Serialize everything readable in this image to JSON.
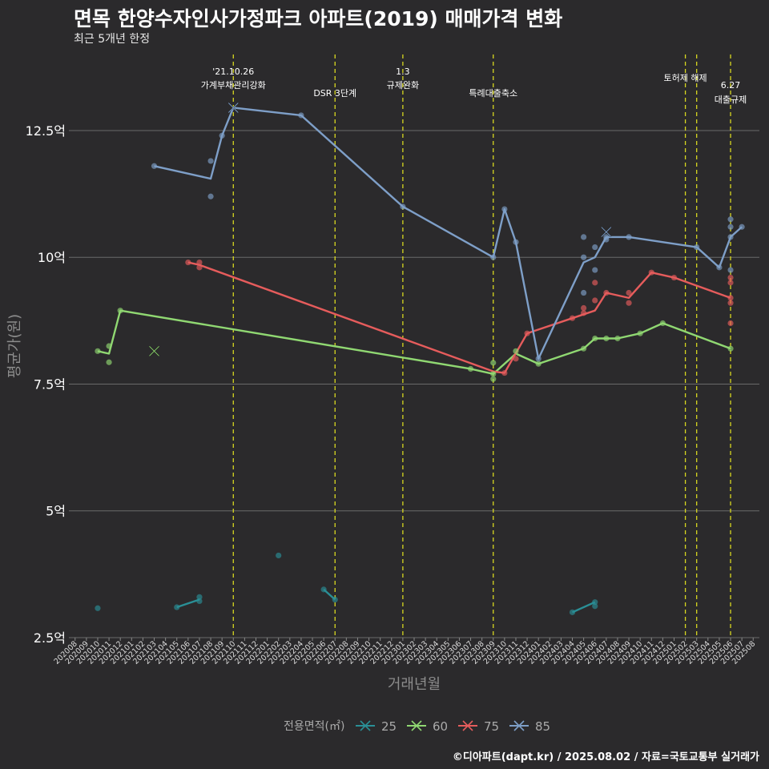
{
  "title": "면목 한양수자인사가정파크 아파트(2019) 매매가격 변화",
  "subtitle": "최근 5개년 한정",
  "caption": "©디아파트(dapt.kr) / 2025.08.02 / 자료=국토교통부 실거래가",
  "chart_data": {
    "type": "line",
    "xlabel": "거래년월",
    "ylabel": "평균가(원)",
    "y_unit": "억",
    "ylim": [
      2.5,
      14
    ],
    "yticks": [
      {
        "value": 2.5,
        "label": "2.5억"
      },
      {
        "value": 5,
        "label": "5억"
      },
      {
        "value": 7.5,
        "label": "7.5억"
      },
      {
        "value": 10,
        "label": "10억"
      },
      {
        "value": 12.5,
        "label": "12.5억"
      }
    ],
    "x_months": [
      "202008",
      "202009",
      "202010",
      "202011",
      "202012",
      "202101",
      "202102",
      "202103",
      "202104",
      "202105",
      "202106",
      "202107",
      "202108",
      "202109",
      "202110",
      "202111",
      "202112",
      "202201",
      "202202",
      "202203",
      "202204",
      "202205",
      "202206",
      "202207",
      "202208",
      "202209",
      "202210",
      "202211",
      "202212",
      "202301",
      "202302",
      "202303",
      "202304",
      "202305",
      "202306",
      "202307",
      "202308",
      "202309",
      "202310",
      "202311",
      "202312",
      "202401",
      "202402",
      "202403",
      "202404",
      "202405",
      "202406",
      "202407",
      "202408",
      "202409",
      "202410",
      "202411",
      "202412",
      "202501",
      "202502",
      "202503",
      "202504",
      "202505",
      "202506",
      "202507",
      "202508"
    ],
    "legend_title": "전용면적(㎡)",
    "legend_position": "bottom",
    "events": [
      {
        "month": 14,
        "lines": [
          "'21.10.26",
          "가계부채관리강화"
        ]
      },
      {
        "month": 23,
        "lines": [
          "DSR 3단계"
        ]
      },
      {
        "month": 29,
        "lines": [
          "1.3",
          "규제완화"
        ]
      },
      {
        "month": 37,
        "lines": [
          "특례대출축소"
        ]
      },
      {
        "month": 54,
        "lines": [
          "토허제 해제"
        ]
      },
      {
        "month": 55,
        "lines": [
          ""
        ]
      },
      {
        "month": 58,
        "lines": [
          "6.27",
          "대출규제"
        ]
      }
    ],
    "series": [
      {
        "name": "25",
        "color": "#2a8f96",
        "line": [
          [
            9,
            3.1
          ],
          [
            11,
            3.25
          ]
        ],
        "line2": [
          [
            22,
            3.45
          ],
          [
            23,
            3.25
          ]
        ],
        "line3": [
          [
            44,
            3.0
          ],
          [
            46,
            3.2
          ]
        ],
        "points": [
          [
            2,
            3.08
          ],
          [
            9,
            3.1
          ],
          [
            11,
            3.22
          ],
          [
            11,
            3.3
          ],
          [
            18,
            4.12
          ],
          [
            22,
            3.45
          ],
          [
            23,
            3.25
          ],
          [
            44,
            3.0
          ],
          [
            46,
            3.12
          ],
          [
            46,
            3.2
          ]
        ],
        "cross": []
      },
      {
        "name": "60",
        "color": "#90d872",
        "line": [
          [
            2,
            8.15
          ],
          [
            3,
            8.1
          ],
          [
            4,
            8.95
          ],
          [
            35,
            7.8
          ],
          [
            37,
            7.7
          ],
          [
            39,
            8.1
          ],
          [
            41,
            7.9
          ],
          [
            45,
            8.2
          ],
          [
            46,
            8.4
          ],
          [
            47,
            8.4
          ],
          [
            48,
            8.4
          ],
          [
            50,
            8.5
          ],
          [
            52,
            8.7
          ],
          [
            58,
            8.2
          ]
        ],
        "points": [
          [
            2,
            8.15
          ],
          [
            3,
            7.93
          ],
          [
            3,
            8.25
          ],
          [
            4,
            8.95
          ],
          [
            35,
            7.8
          ],
          [
            37,
            7.6
          ],
          [
            37,
            7.7
          ],
          [
            37,
            7.92
          ],
          [
            39,
            8.15
          ],
          [
            41,
            7.9
          ],
          [
            45,
            8.2
          ],
          [
            46,
            8.4
          ],
          [
            47,
            8.4
          ],
          [
            48,
            8.4
          ],
          [
            50,
            8.5
          ],
          [
            52,
            8.7
          ],
          [
            58,
            8.2
          ]
        ],
        "cross": [
          [
            7,
            8.15
          ]
        ]
      },
      {
        "name": "75",
        "color": "#e65c5c",
        "line": [
          [
            10,
            9.9
          ],
          [
            11,
            9.85
          ],
          [
            37,
            7.75
          ],
          [
            38,
            7.72
          ],
          [
            40,
            8.5
          ],
          [
            44,
            8.8
          ],
          [
            46,
            8.95
          ],
          [
            47,
            9.3
          ],
          [
            49,
            9.2
          ],
          [
            51,
            9.7
          ],
          [
            53,
            9.6
          ],
          [
            58,
            9.2
          ]
        ],
        "points": [
          [
            10,
            9.9
          ],
          [
            11,
            9.8
          ],
          [
            11,
            9.9
          ],
          [
            38,
            7.72
          ],
          [
            39,
            8.0
          ],
          [
            40,
            8.5
          ],
          [
            44,
            8.8
          ],
          [
            45,
            8.9
          ],
          [
            45,
            9.0
          ],
          [
            46,
            9.15
          ],
          [
            46,
            9.5
          ],
          [
            47,
            9.3
          ],
          [
            49,
            9.1
          ],
          [
            49,
            9.3
          ],
          [
            51,
            9.7
          ],
          [
            53,
            9.6
          ],
          [
            58,
            8.7
          ],
          [
            58,
            9.1
          ],
          [
            58,
            9.2
          ],
          [
            58,
            9.5
          ],
          [
            58,
            9.6
          ]
        ],
        "cross": []
      },
      {
        "name": "85",
        "color": "#7e9fc8",
        "line": [
          [
            7,
            11.8
          ],
          [
            12,
            11.55
          ],
          [
            13,
            12.4
          ],
          [
            14,
            12.95
          ],
          [
            20,
            12.8
          ],
          [
            29,
            11.0
          ],
          [
            37,
            10.0
          ],
          [
            38,
            10.95
          ],
          [
            39,
            10.3
          ],
          [
            41,
            8.0
          ],
          [
            45,
            9.9
          ],
          [
            46,
            10.0
          ],
          [
            47,
            10.4
          ],
          [
            48,
            10.4
          ],
          [
            49,
            10.4
          ],
          [
            55,
            10.2
          ],
          [
            57,
            9.8
          ],
          [
            58,
            10.4
          ],
          [
            59,
            10.6
          ]
        ],
        "points": [
          [
            7,
            11.8
          ],
          [
            12,
            11.2
          ],
          [
            12,
            11.9
          ],
          [
            13,
            12.4
          ],
          [
            20,
            12.8
          ],
          [
            29,
            11.0
          ],
          [
            37,
            10.0
          ],
          [
            38,
            10.95
          ],
          [
            39,
            10.3
          ],
          [
            41,
            8.0
          ],
          [
            45,
            9.3
          ],
          [
            45,
            10.0
          ],
          [
            45,
            10.4
          ],
          [
            46,
            9.75
          ],
          [
            46,
            10.2
          ],
          [
            47,
            10.35
          ],
          [
            47,
            10.4
          ],
          [
            49,
            10.4
          ],
          [
            55,
            10.2
          ],
          [
            57,
            9.8
          ],
          [
            58,
            9.75
          ],
          [
            58,
            10.4
          ],
          [
            58,
            10.6
          ],
          [
            58,
            10.75
          ],
          [
            59,
            10.6
          ]
        ],
        "cross": [
          [
            14,
            12.95
          ],
          [
            47,
            10.5
          ]
        ]
      }
    ]
  }
}
